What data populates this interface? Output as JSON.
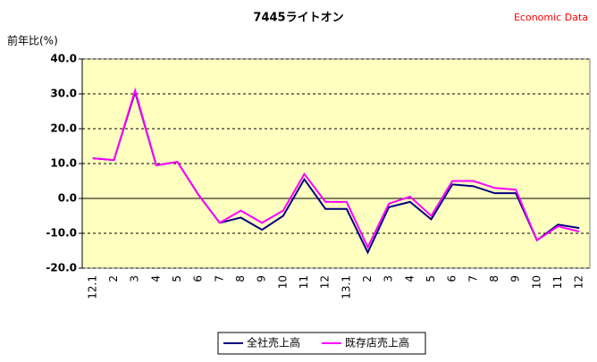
{
  "chart_data": {
    "type": "line",
    "title": "7445ライトオン",
    "source": "Economic Data",
    "ylabel": "前年比(%)",
    "categories": [
      "12.1",
      "2",
      "3",
      "4",
      "5",
      "6",
      "7",
      "8",
      "9",
      "10",
      "11",
      "12",
      "13.1",
      "2",
      "3",
      "4",
      "5",
      "6",
      "7",
      "8",
      "9",
      "10",
      "11",
      "12"
    ],
    "series": [
      {
        "name": "全社売上高",
        "color": "#000080",
        "values": [
          11.5,
          11,
          30.5,
          9.5,
          10.5,
          1,
          -7,
          -5.5,
          -9,
          -5,
          5.5,
          -3,
          -3,
          -15.5,
          -2.5,
          -1,
          -6,
          4,
          3.5,
          1.5,
          1.5,
          -12,
          -7.5,
          -8.5
        ]
      },
      {
        "name": "既存店売上高",
        "color": "#ff00ff",
        "values": [
          11.5,
          11,
          31,
          9.5,
          10.5,
          1,
          -7,
          -3.5,
          -7,
          -3.5,
          7,
          -1,
          -1,
          -14,
          -1.5,
          0.5,
          -5,
          5,
          5,
          3,
          2.5,
          -12,
          -8,
          -9.5
        ]
      }
    ],
    "ylim": [
      -20,
      40
    ],
    "yticks": [
      {
        "value": -20,
        "label": "-20.0"
      },
      {
        "value": -10,
        "label": "-10.0"
      },
      {
        "value": 0,
        "label": "0.0"
      },
      {
        "value": 10,
        "label": "10.0"
      },
      {
        "value": 20,
        "label": "20.0"
      },
      {
        "value": 30,
        "label": "30.0"
      },
      {
        "value": 40,
        "label": "40.0"
      }
    ],
    "grid": true
  }
}
